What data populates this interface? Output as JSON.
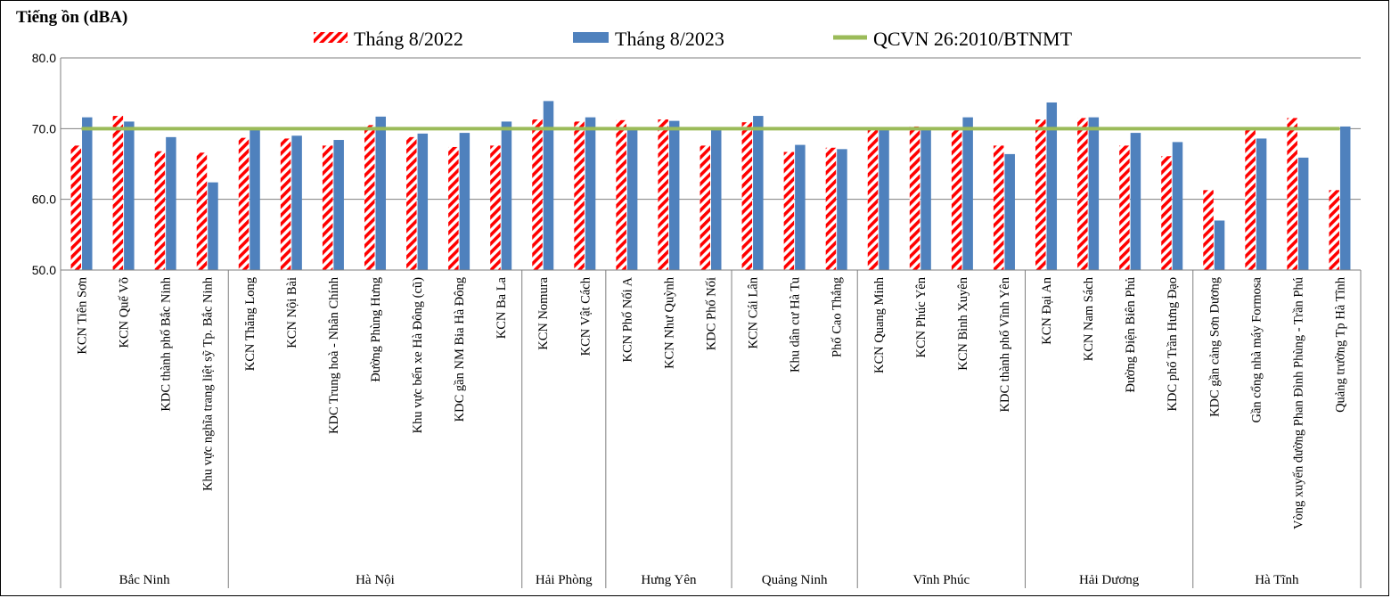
{
  "chart_data": {
    "type": "bar",
    "ylabel": "Tiếng ồn (dBA)",
    "ylim": [
      50,
      80
    ],
    "yticks": [
      "50.0",
      "60.0",
      "70.0",
      "80.0"
    ],
    "grid": true,
    "legend_position": "top",
    "colors": {
      "series_2022": "#ff0000",
      "series_2023": "#4f81bd",
      "reference": "#9bbb59"
    },
    "categories": [
      "KCN Tiên Sơn",
      "KCN Quế Võ",
      "KDC thành phố Bắc Ninh",
      "Khu vực nghĩa trang liệt sỹ Tp. Bắc Ninh",
      "KCN Thăng Long",
      "KCN Nội Bài",
      "KDC Trung hoà - Nhân Chính",
      "Đường Phùng Hưng",
      "Khu vực bến xe Hà Đông (cũ)",
      "KDC gần NM Bia Hà Đông",
      "KCN Ba La",
      "KCN Nomura",
      "KCN Vật Cách",
      "KCN Phố Nối A",
      "KCN Như Quỳnh",
      "KDC Phố Nối",
      "KCN Cái Lân",
      "Khu dân cư  Hà Tu",
      "Phố Cao Thắng",
      "KCN Quang Minh",
      "KCN Phúc Yên",
      "KCN Bình Xuyên",
      "KDC thành phố Vĩnh Yên",
      "KCN Đại An",
      "KCN Nam Sách",
      "Đường Điện Biên Phủ",
      "KDC phố Trần Hưng Đạo",
      "KDC gần cảng Sơn Dương",
      "Gần cổng nhà máy Formosa",
      "Vòng xuyến đường Phan Đình Phùng - Trần Phú",
      "Quảng trường Tp Hà Tĩnh"
    ],
    "groups": [
      {
        "label": "Bắc Ninh",
        "count": 4
      },
      {
        "label": "Hà Nội",
        "count": 7
      },
      {
        "label": "Hải Phòng",
        "count": 2
      },
      {
        "label": "Hưng Yên",
        "count": 3
      },
      {
        "label": "Quảng Ninh",
        "count": 3
      },
      {
        "label": "Vĩnh Phúc",
        "count": 4
      },
      {
        "label": "Hải Dương",
        "count": 4
      },
      {
        "label": "Hà Tĩnh",
        "count": 4
      }
    ],
    "series": [
      {
        "name": "Tháng 8/2022",
        "style": "hatched",
        "values": [
          67.6,
          71.8,
          66.8,
          66.6,
          68.7,
          68.6,
          67.6,
          70.5,
          68.8,
          67.4,
          67.6,
          71.3,
          71.0,
          71.2,
          71.3,
          67.6,
          70.9,
          66.7,
          67.3,
          70.0,
          70.3,
          70.2,
          67.6,
          71.3,
          71.5,
          67.6,
          66.1,
          61.3,
          70.1,
          71.5,
          61.3
        ]
      },
      {
        "name": "Tháng 8/2023",
        "style": "solid",
        "values": [
          71.6,
          71.0,
          68.8,
          62.4,
          69.9,
          69.0,
          68.4,
          71.7,
          69.3,
          69.4,
          71.0,
          73.9,
          71.6,
          69.9,
          71.1,
          69.9,
          71.8,
          67.7,
          67.1,
          69.9,
          69.9,
          71.6,
          66.4,
          73.7,
          71.6,
          69.4,
          68.1,
          57.0,
          68.6,
          65.9,
          70.3
        ]
      }
    ],
    "reference_line": {
      "name": "QCVN 26:2010/BTNMT",
      "value": 70
    }
  }
}
